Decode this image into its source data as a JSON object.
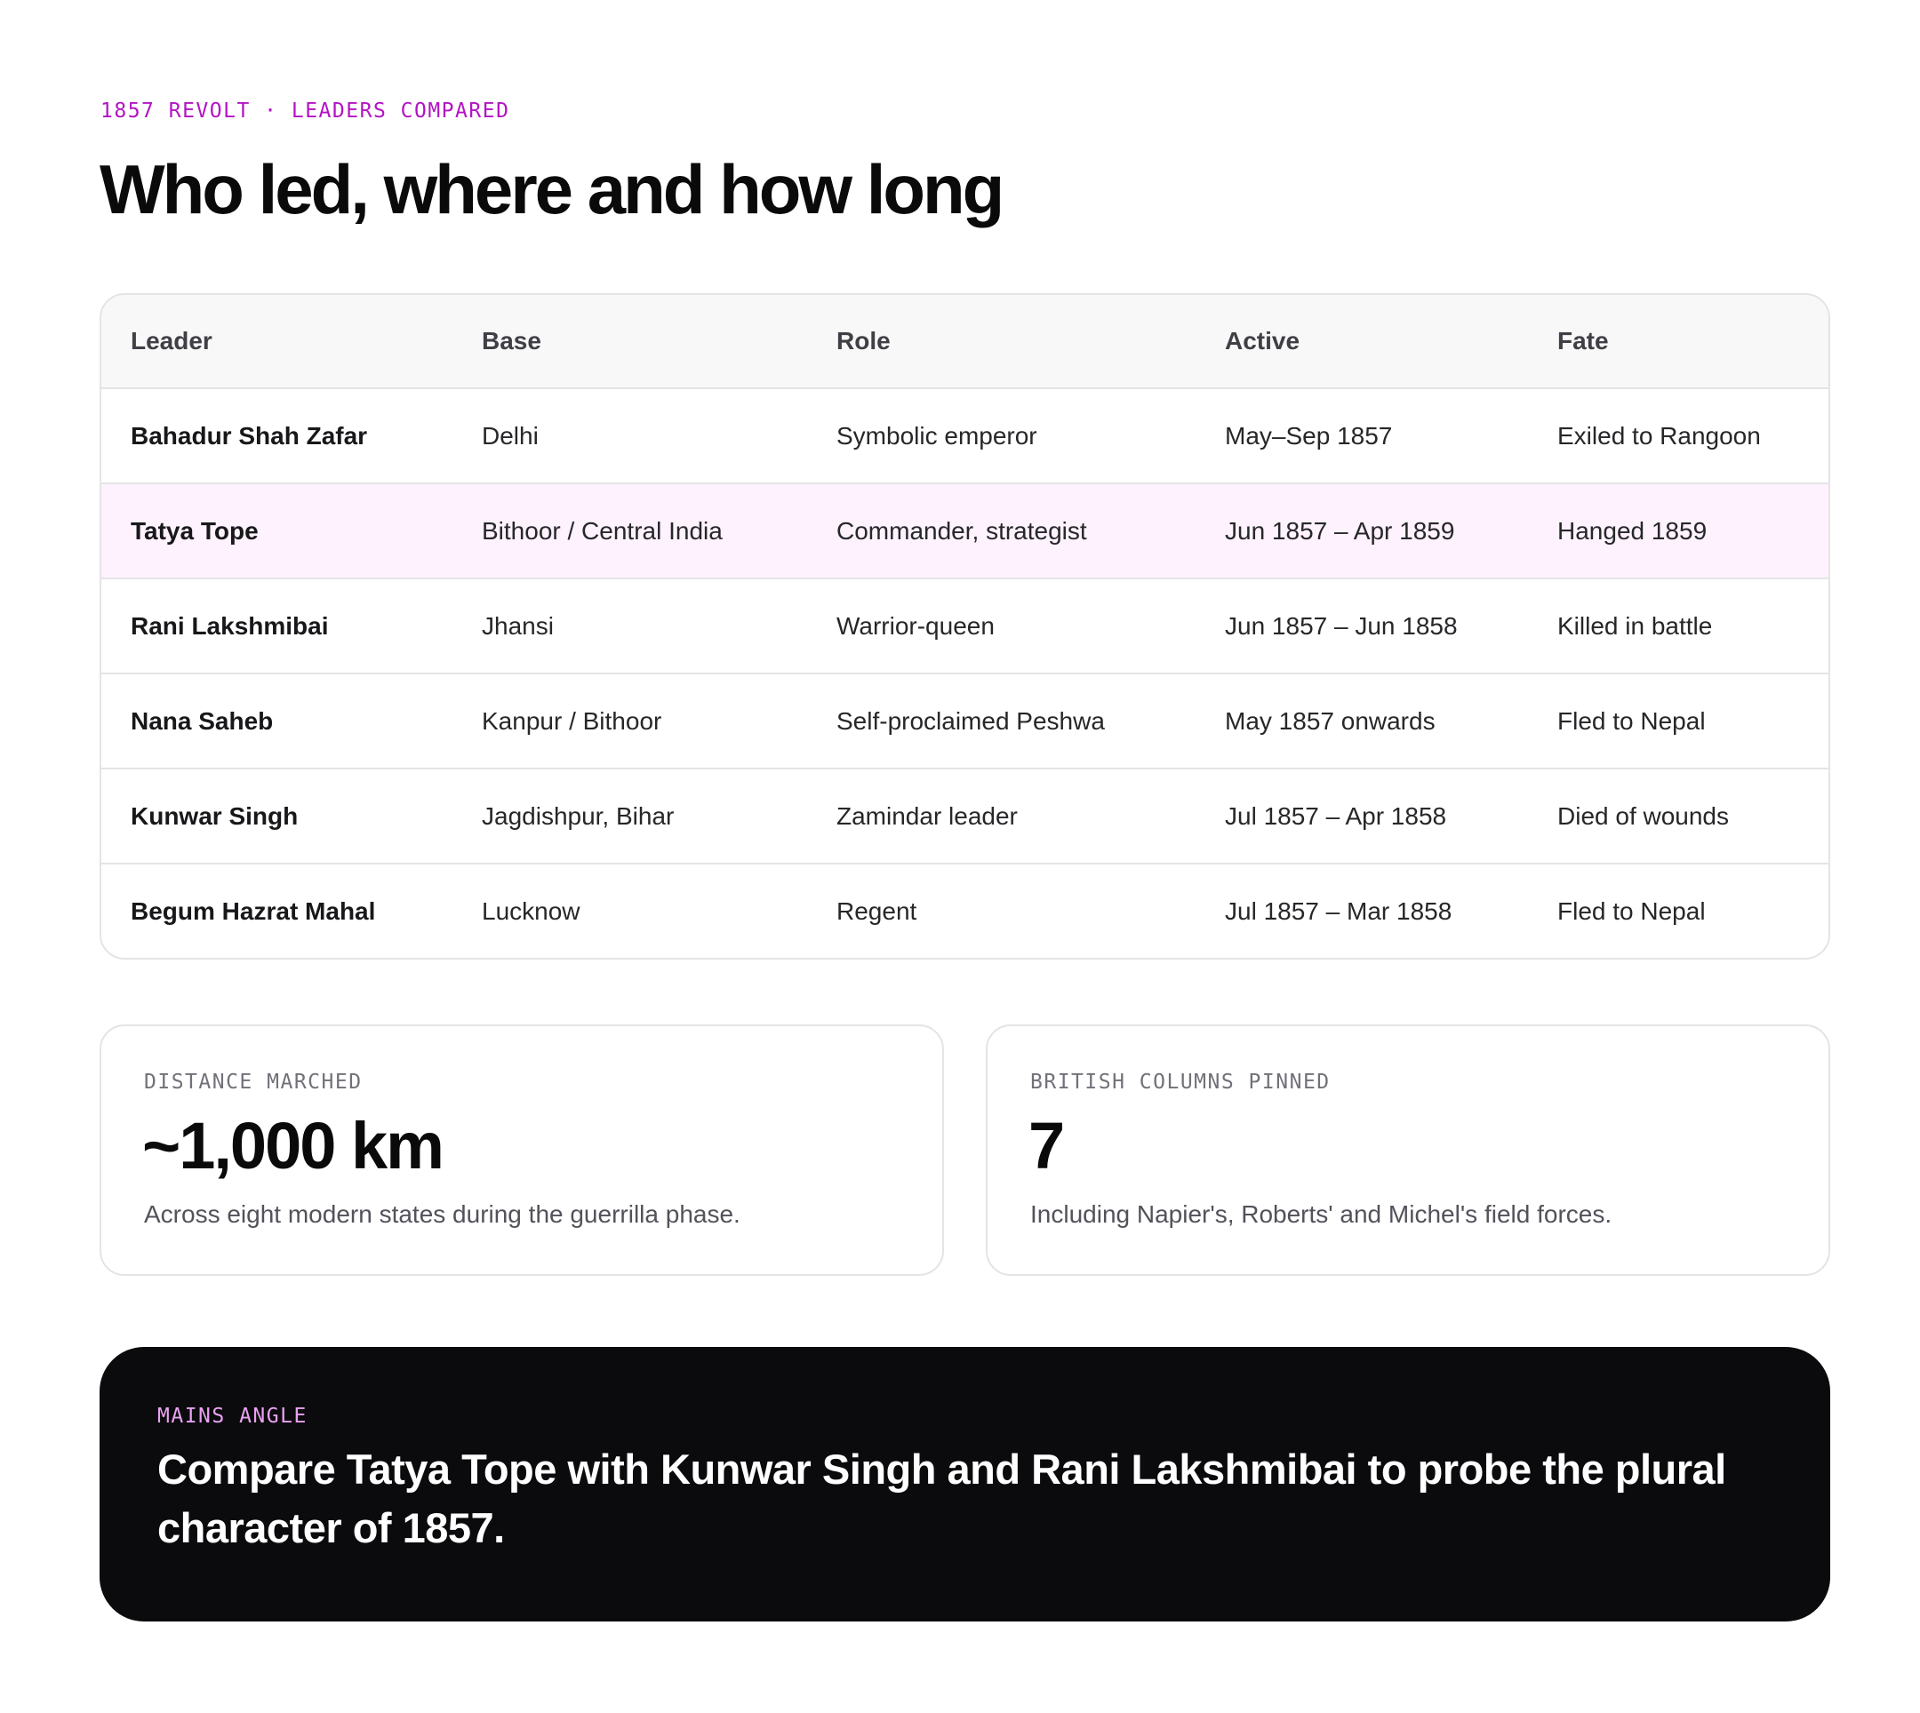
{
  "eyebrow": "1857 REVOLT · LEADERS COMPARED",
  "title": "Who led, where and how long",
  "table": {
    "headers": [
      "Leader",
      "Base",
      "Role",
      "Active",
      "Fate"
    ],
    "highlight_color": "#fdf2fd",
    "rows": [
      [
        "Bahadur Shah Zafar",
        "Delhi",
        "Symbolic emperor",
        "May–Sep 1857",
        "Exiled to Rangoon"
      ],
      [
        "Tatya Tope",
        "Bithoor / Central India",
        "Commander, strategist",
        "Jun 1857 – Apr 1859",
        "Hanged 1859"
      ],
      [
        "Rani Lakshmibai",
        "Jhansi",
        "Warrior-queen",
        "Jun 1857 – Jun 1858",
        "Killed in battle"
      ],
      [
        "Nana Saheb",
        "Kanpur / Bithoor",
        "Self-proclaimed Peshwa",
        "May 1857 onwards",
        "Fled to Nepal"
      ],
      [
        "Kunwar Singh",
        "Jagdishpur, Bihar",
        "Zamindar leader",
        "Jul 1857 – Apr 1858",
        "Died of wounds"
      ],
      [
        "Begum Hazrat Mahal",
        "Lucknow",
        "Regent",
        "Jul 1857 – Mar 1858",
        "Fled to Nepal"
      ]
    ]
  },
  "cards": [
    {
      "label": "DISTANCE MARCHED",
      "value": "~1,000 km",
      "desc": "Across eight modern states during the guerrilla phase."
    },
    {
      "label": "BRITISH COLUMNS PINNED",
      "value": "7",
      "desc": "Including Napier's, Roberts' and Michel's field forces."
    }
  ],
  "callout": {
    "label": "MAINS ANGLE",
    "text": "Compare Tatya Tope with Kunwar Singh and Rani Lakshmibai to probe the plural character of 1857."
  },
  "colors": {
    "accent": "#b214c4",
    "callout_bg": "#0b0b0d",
    "callout_label": "#eaa2f2"
  }
}
